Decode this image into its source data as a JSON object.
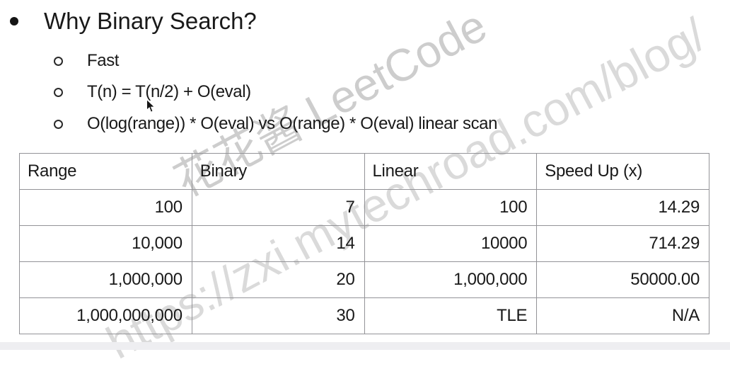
{
  "slide": {
    "title": "Why Binary Search?",
    "bullets": [
      "Fast",
      "T(n) = T(n/2) + O(eval)",
      "O(log(range)) * O(eval) vs O(range) * O(eval) linear scan"
    ]
  },
  "table": {
    "headers": [
      "Range",
      "Binary",
      "Linear",
      "Speed Up (x)"
    ],
    "rows": [
      [
        "100",
        "7",
        "100",
        "14.29"
      ],
      [
        "10,000",
        "14",
        "10000",
        "714.29"
      ],
      [
        "1,000,000",
        "20",
        "1,000,000",
        "50000.00"
      ],
      [
        "1,000,000,000",
        "30",
        "TLE",
        "N/A"
      ]
    ]
  },
  "watermark": {
    "brand": "花花酱 LeetCode",
    "url": "https://zxi.mytechroad.com/blog/",
    "color_brand": "#cdcdcd",
    "color_url": "#dadada"
  },
  "icons": {
    "title_bullet": "filled-circle",
    "sub_bullet": "open-circle",
    "cursor": "arrow-pointer"
  }
}
